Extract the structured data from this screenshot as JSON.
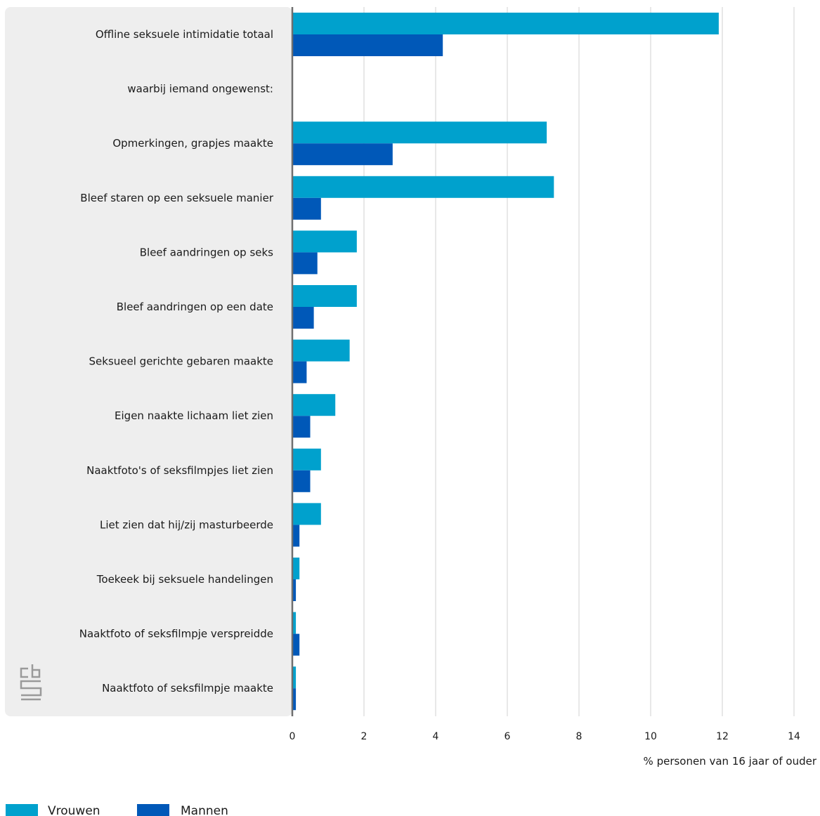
{
  "chart_data": {
    "type": "bar",
    "orientation": "horizontal",
    "categories": [
      "Offline seksuele intimidatie totaal",
      "waarbij iemand ongewenst:",
      "Opmerkingen, grapjes maakte",
      "Bleef staren op een seksuele manier",
      "Bleef aandringen op seks",
      "Bleef aandringen op een date",
      "Seksueel gerichte gebaren maakte",
      "Eigen naakte lichaam liet zien",
      "Naaktfoto's of seksfilmpjes liet zien",
      "Liet zien dat hij/zij masturbeerde",
      "Toekeek bij seksuele handelingen",
      "Naaktfoto of seksfilmpje verspreidde",
      "Naaktfoto of seksfilmpje maakte"
    ],
    "series": [
      {
        "name": "Vrouwen",
        "color": "#00a1cd",
        "values": [
          11.9,
          null,
          7.1,
          7.3,
          1.8,
          1.8,
          1.6,
          1.2,
          0.8,
          0.8,
          0.2,
          0.1,
          0.1
        ]
      },
      {
        "name": "Mannen",
        "color": "#0058b8",
        "values": [
          4.2,
          null,
          2.8,
          0.8,
          0.7,
          0.6,
          0.4,
          0.5,
          0.5,
          0.2,
          0.1,
          0.2,
          0.1
        ]
      }
    ],
    "xlim": [
      0,
      14
    ],
    "xticks": [
      "0",
      "2",
      "4",
      "6",
      "8",
      "10",
      "12",
      "14"
    ],
    "xlabel": "% personen van 16 jaar of ouder",
    "legend_position": "bottom-left",
    "grid": true
  },
  "logo": {
    "text": "cbs",
    "icon": "cbs-logo-icon",
    "color": "#9a9a9a"
  }
}
